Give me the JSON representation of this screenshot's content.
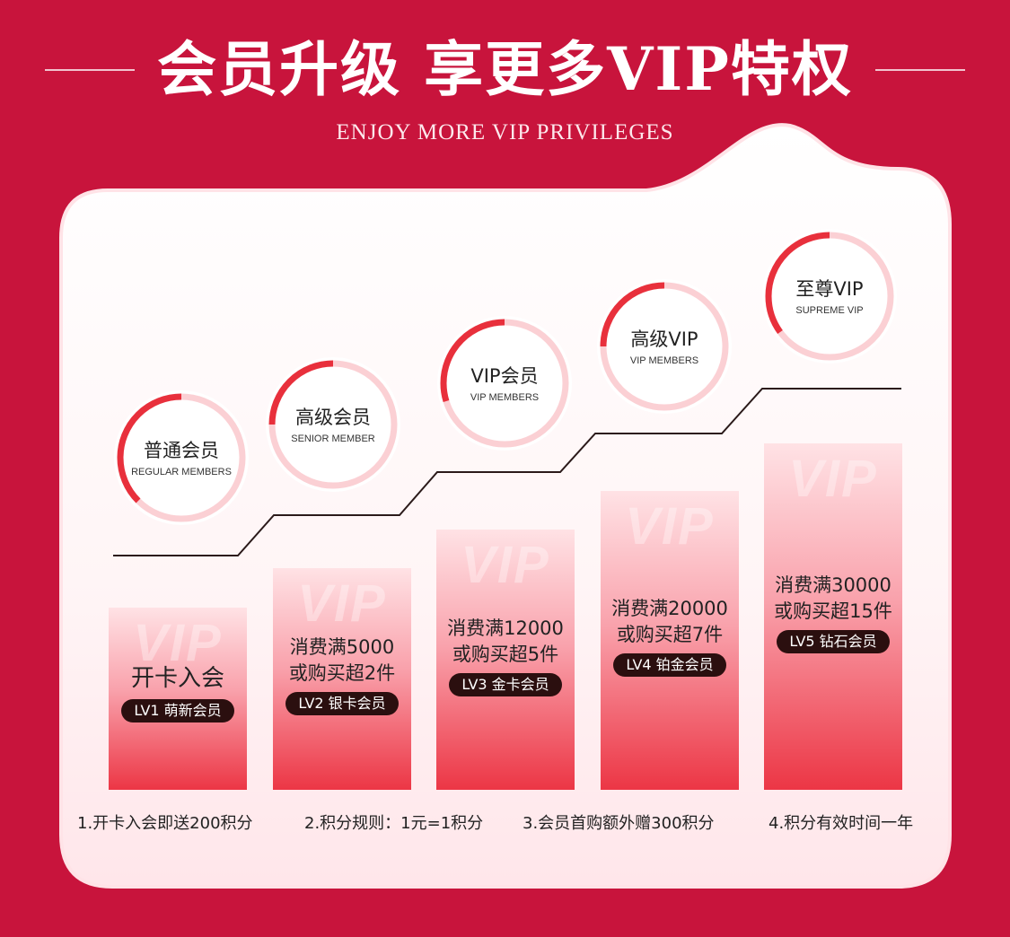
{
  "header": {
    "title": "会员升级 享更多VIP特权",
    "subtitle": "ENJOY MORE VIP PRIVILEGES"
  },
  "colors": {
    "background": "#c8143c",
    "accent_red": "#e8303c",
    "ring_pink": "#fbd0d4",
    "badge_dark": "#2b0f0f"
  },
  "tiers": [
    {
      "name_cn": "普通会员",
      "name_en": "REGULAR MEMBERS",
      "condition": "开卡入会",
      "badge": "LV1 萌新会员",
      "watermark": "VIP"
    },
    {
      "name_cn": "高级会员",
      "name_en": "SENIOR MEMBER",
      "condition": "消费满5000\n或购买超2件",
      "badge": "LV2 银卡会员",
      "watermark": "VIP"
    },
    {
      "name_cn": "VIP会员",
      "name_en": "VIP MEMBERS",
      "condition": "消费满12000\n或购买超5件",
      "badge": "LV3 金卡会员",
      "watermark": "VIP"
    },
    {
      "name_cn": "高级VIP",
      "name_en": "VIP MEMBERS",
      "condition": "消费满20000\n或购买超7件",
      "badge": "LV4 铂金会员",
      "watermark": "VIP"
    },
    {
      "name_cn": "至尊VIP",
      "name_en": "SUPREME VIP",
      "condition": "消费满30000\n或购买超15件",
      "badge": "LV5 钻石会员",
      "watermark": "VIP"
    }
  ],
  "rules": [
    "1.开卡入会即送200积分",
    "2.积分规则：1元=1积分",
    "3.会员首购额外赠300积分",
    "4.积分有效时间一年"
  ]
}
